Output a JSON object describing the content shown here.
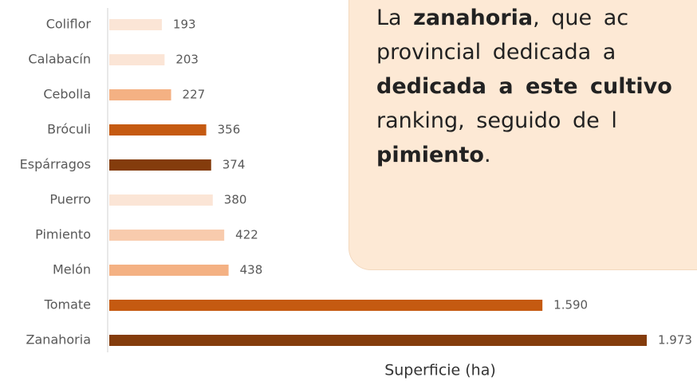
{
  "chart_data": {
    "type": "barh",
    "categories": [
      "Coliflor",
      "Calabacín",
      "Cebolla",
      "Bróculi",
      "Espárragos",
      "Puerro",
      "Pimiento",
      "Melón",
      "Tomate",
      "Zanahoria"
    ],
    "values": [
      193,
      203,
      227,
      356,
      374,
      380,
      422,
      438,
      1590,
      1973
    ],
    "value_labels": [
      "193",
      "203",
      "227",
      "356",
      "374",
      "380",
      "422",
      "438",
      "1.590",
      "1.973"
    ],
    "colors": [
      "#fbe5d6",
      "#fbe5d6",
      "#f4b183",
      "#c55a11",
      "#843c0c",
      "#fbe5d6",
      "#f8cbad",
      "#f4b183",
      "#c55a11",
      "#843c0c"
    ],
    "xlabel": "Superficie (ha)",
    "annotation": [
      [
        {
          "text": "La "
        },
        {
          "text": "zanahoria",
          "bold": true
        },
        {
          "text": ", que ac"
        }
      ],
      [
        {
          "text": "provincial dedicada a"
        }
      ],
      [
        {
          "text": "dedicada a este cultivo",
          "bold": true
        }
      ],
      [
        {
          "text": "ranking, seguido de l"
        }
      ],
      [
        {
          "text": "pimiento",
          "bold": true
        },
        {
          "text": "."
        }
      ]
    ]
  }
}
